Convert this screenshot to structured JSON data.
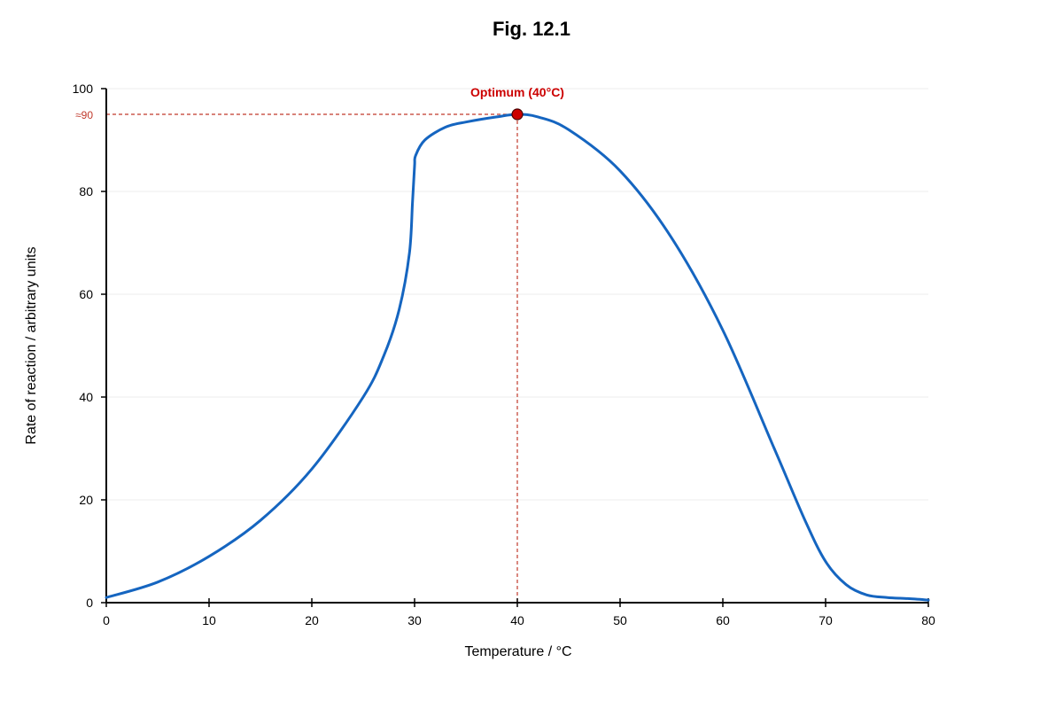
{
  "chart_data": {
    "type": "line",
    "title": "Fig. 12.1",
    "xlabel": "Temperature / °C",
    "ylabel": "Rate of reaction / arbitrary units",
    "xlim": [
      0,
      80
    ],
    "ylim": [
      0,
      100
    ],
    "xticks": [
      0,
      10,
      20,
      30,
      40,
      50,
      60,
      70,
      80
    ],
    "yticks": [
      0,
      20,
      40,
      60,
      80,
      100
    ],
    "grid": "horizontal",
    "series": [
      {
        "color": "#1565c0",
        "x": [
          0,
          5,
          10,
          15,
          20,
          25,
          27,
          28.5,
          29.5,
          29.8,
          30,
          30.1,
          31,
          33,
          35,
          38,
          40,
          42,
          45,
          50,
          55,
          60,
          65,
          68,
          70,
          72,
          74,
          76,
          78,
          80
        ],
        "y": [
          1,
          4,
          9,
          16,
          26,
          40,
          48,
          57,
          68,
          78,
          85,
          87,
          90,
          92.5,
          93.5,
          94.5,
          95,
          94.5,
          92,
          84,
          71,
          53,
          30,
          16,
          8,
          3.5,
          1.5,
          1,
          0.8,
          0.5
        ]
      }
    ],
    "annotations": {
      "optimum": {
        "x": 40,
        "y": 95,
        "label": "Optimum (40°C)",
        "color": "#cc0000"
      },
      "y_reference": {
        "label": "≈90",
        "color": "#c0392b"
      }
    }
  }
}
